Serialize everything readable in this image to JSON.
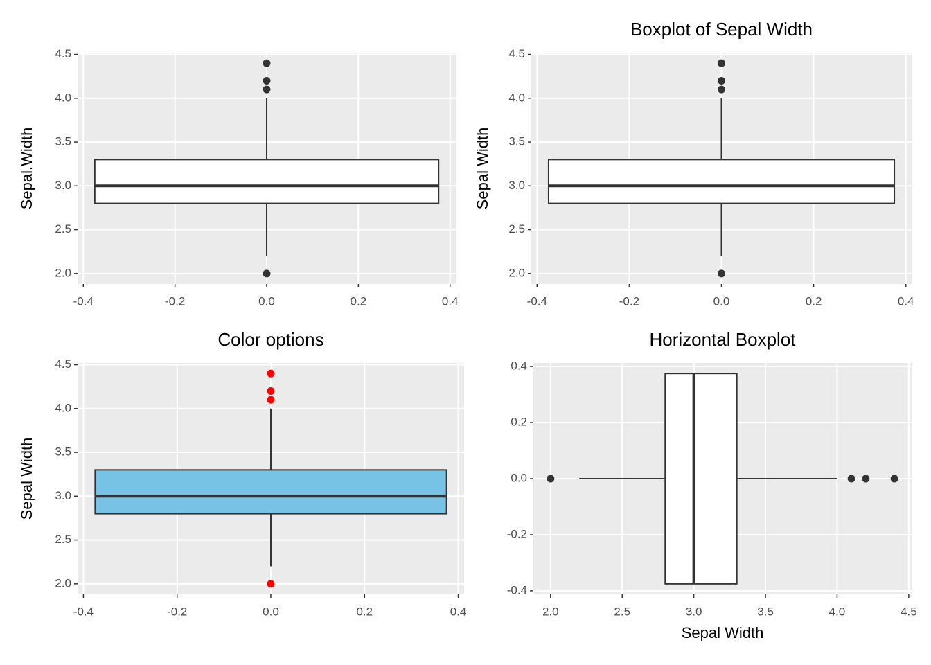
{
  "chart_data": [
    {
      "type": "boxplot",
      "orientation": "vertical",
      "ylabel": "Sepal.Width",
      "whisker_low": 2.2,
      "q1": 2.8,
      "median": 3.0,
      "q3": 3.3,
      "whisker_high": 4.0,
      "outliers": [
        2.0,
        4.1,
        4.2,
        4.4
      ],
      "box_position": [
        -0.375,
        0.375
      ],
      "fill": "#ffffff",
      "line_color": "#333333",
      "outlier_color": "#333333",
      "xlim": [
        -0.4125,
        0.4125
      ],
      "xticks": [
        -0.4,
        -0.2,
        {
          "value": 0,
          "label": "0.0"
        },
        0.2,
        0.4
      ],
      "ylim": [
        1.88,
        4.52
      ],
      "yticks": [
        {
          "value": 2,
          "label": "2.0"
        },
        2.5,
        {
          "value": 3,
          "label": "3.0"
        },
        3.5,
        {
          "value": 4,
          "label": "4.0"
        },
        4.5
      ],
      "grid": true
    },
    {
      "type": "boxplot",
      "orientation": "vertical",
      "title": "Boxplot of Sepal Width",
      "ylabel": "Sepal Width",
      "whisker_low": 2.2,
      "q1": 2.8,
      "median": 3.0,
      "q3": 3.3,
      "whisker_high": 4.0,
      "outliers": [
        2.0,
        4.1,
        4.2,
        4.4
      ],
      "box_position": [
        -0.375,
        0.375
      ],
      "fill": "#ffffff",
      "line_color": "#333333",
      "outlier_color": "#333333",
      "xlim": [
        -0.4125,
        0.4125
      ],
      "xticks": [
        -0.4,
        -0.2,
        {
          "value": 0,
          "label": "0.0"
        },
        0.2,
        0.4
      ],
      "ylim": [
        1.88,
        4.52
      ],
      "yticks": [
        {
          "value": 2,
          "label": "2.0"
        },
        2.5,
        {
          "value": 3,
          "label": "3.0"
        },
        3.5,
        {
          "value": 4,
          "label": "4.0"
        },
        4.5
      ],
      "grid": true
    },
    {
      "type": "boxplot",
      "orientation": "vertical",
      "title": "Color options",
      "ylabel": "Sepal Width",
      "whisker_low": 2.2,
      "q1": 2.8,
      "median": 3.0,
      "q3": 3.3,
      "whisker_high": 4.0,
      "outliers": [
        2.0,
        4.1,
        4.2,
        4.4
      ],
      "box_position": [
        -0.375,
        0.375
      ],
      "fill": "#77c3e5",
      "line_color": "#333333",
      "outlier_color": "#ff0000",
      "xlim": [
        -0.4125,
        0.4125
      ],
      "xticks": [
        -0.4,
        -0.2,
        {
          "value": 0,
          "label": "0.0"
        },
        0.2,
        0.4
      ],
      "ylim": [
        1.88,
        4.52
      ],
      "yticks": [
        {
          "value": 2,
          "label": "2.0"
        },
        2.5,
        {
          "value": 3,
          "label": "3.0"
        },
        3.5,
        {
          "value": 4,
          "label": "4.0"
        },
        4.5
      ],
      "grid": true
    },
    {
      "type": "boxplot",
      "orientation": "horizontal",
      "title": "Horizontal Boxplot",
      "xlabel": "Sepal Width",
      "whisker_low": 2.2,
      "q1": 2.8,
      "median": 3.0,
      "q3": 3.3,
      "whisker_high": 4.0,
      "outliers": [
        2.0,
        4.1,
        4.2,
        4.4
      ],
      "box_position": [
        -0.375,
        0.375
      ],
      "fill": "#ffffff",
      "line_color": "#333333",
      "outlier_color": "#333333",
      "xlim": [
        1.88,
        4.52
      ],
      "xticks": [
        {
          "value": 2,
          "label": "2.0"
        },
        2.5,
        {
          "value": 3,
          "label": "3.0"
        },
        3.5,
        {
          "value": 4,
          "label": "4.0"
        },
        4.5
      ],
      "ylim": [
        -0.4125,
        0.4125
      ],
      "yticks": [
        -0.4,
        -0.2,
        {
          "value": 0,
          "label": "0.0"
        },
        0.2,
        0.4
      ],
      "grid": true
    }
  ]
}
